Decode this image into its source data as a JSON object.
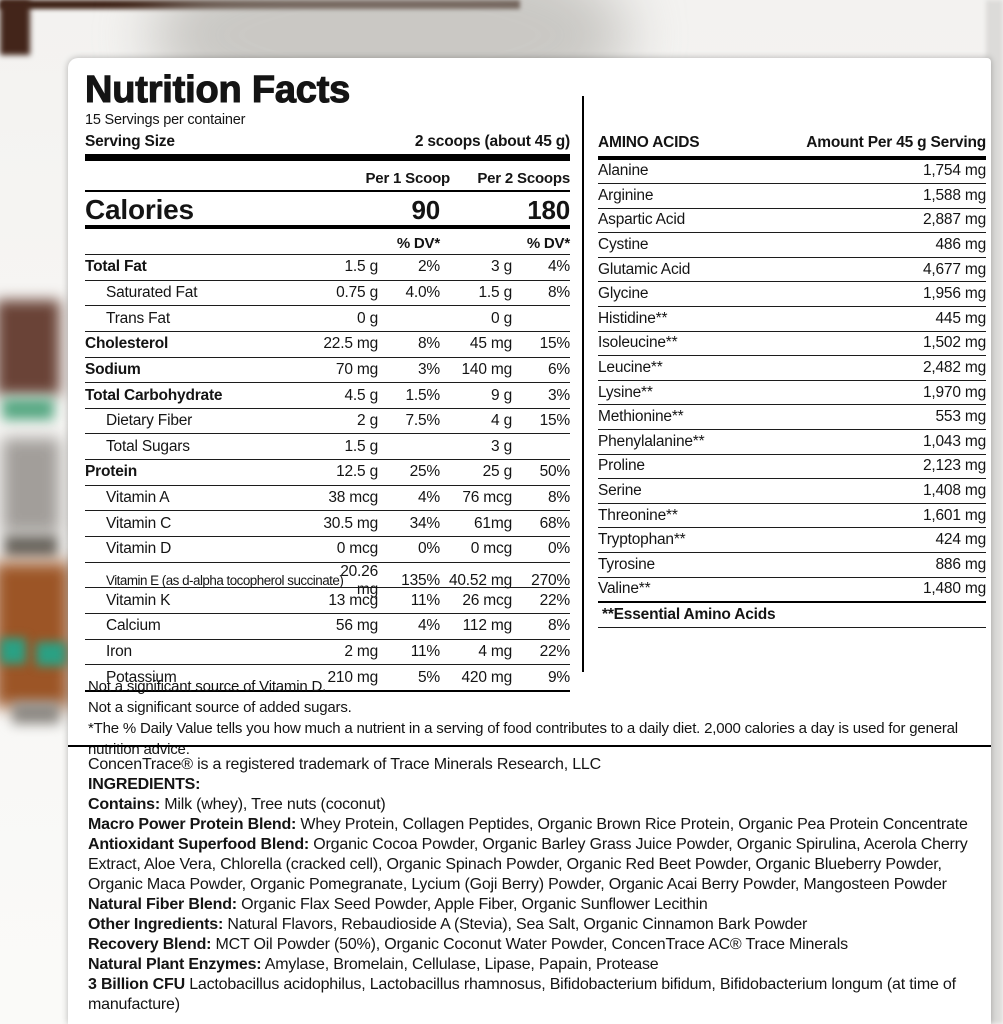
{
  "header": {
    "title": "Nutrition Facts",
    "servings_per_container": "15 Servings per container",
    "serving_size_label": "Serving Size",
    "serving_size_value": "2 scoops (about 45 g)"
  },
  "columns": {
    "per1": "Per 1 Scoop",
    "per2": "Per 2 Scoops",
    "dv1": "% DV*",
    "dv2": "% DV*"
  },
  "calories": {
    "label": "Calories",
    "per1": "90",
    "per2": "180"
  },
  "nutrients": [
    {
      "name": "Total Fat",
      "a1": "1.5 g",
      "d1": "2%",
      "a2": "3 g",
      "d2": "4%"
    },
    {
      "name": "Saturated Fat",
      "a1": "0.75 g",
      "d1": "4.0%",
      "a2": "1.5 g",
      "d2": "8%"
    },
    {
      "name": "Trans Fat",
      "a1": "0 g",
      "d1": "",
      "a2": "0 g",
      "d2": ""
    },
    {
      "name": "Cholesterol",
      "a1": "22.5 mg",
      "d1": "8%",
      "a2": "45 mg",
      "d2": "15%"
    },
    {
      "name": "Sodium",
      "a1": "70 mg",
      "d1": "3%",
      "a2": "140 mg",
      "d2": "6%"
    },
    {
      "name": "Total Carbohydrate",
      "a1": "4.5 g",
      "d1": "1.5%",
      "a2": "9 g",
      "d2": "3%"
    },
    {
      "name": "Dietary Fiber",
      "a1": "2 g",
      "d1": "7.5%",
      "a2": "4 g",
      "d2": "15%"
    },
    {
      "name": "Total Sugars",
      "a1": "1.5 g",
      "d1": "",
      "a2": "3 g",
      "d2": ""
    },
    {
      "name": "Protein",
      "a1": "12.5 g",
      "d1": "25%",
      "a2": "25 g",
      "d2": "50%"
    },
    {
      "name": "Vitamin A",
      "a1": "38 mcg",
      "d1": "4%",
      "a2": "76 mcg",
      "d2": "8%"
    },
    {
      "name": "Vitamin C",
      "a1": "30.5 mg",
      "d1": "34%",
      "a2": "61mg",
      "d2": "68%"
    },
    {
      "name": "Vitamin D",
      "a1": "0 mcg",
      "d1": "0%",
      "a2": "0 mcg",
      "d2": "0%"
    },
    {
      "name": "Vitamin E (as d-alpha tocopherol succinate)",
      "a1": "20.26 mg",
      "d1": "135%",
      "a2": "40.52 mg",
      "d2": "270%"
    },
    {
      "name": "Vitamin K",
      "a1": "13 mcg",
      "d1": "11%",
      "a2": "26 mcg",
      "d2": "22%"
    },
    {
      "name": "Calcium",
      "a1": "56 mg",
      "d1": "4%",
      "a2": "112 mg",
      "d2": "8%"
    },
    {
      "name": "Iron",
      "a1": "2 mg",
      "d1": "11%",
      "a2": "4 mg",
      "d2": "22%"
    },
    {
      "name": "Potassium",
      "a1": "210 mg",
      "d1": "5%",
      "a2": "420 mg",
      "d2": "9%"
    }
  ],
  "amino": {
    "header_left": "AMINO ACIDS",
    "header_right": "Amount Per 45 g Serving",
    "rows": [
      {
        "name": "Alanine",
        "amount": "1,754 mg"
      },
      {
        "name": "Arginine",
        "amount": "1,588 mg"
      },
      {
        "name": "Aspartic Acid",
        "amount": "2,887 mg"
      },
      {
        "name": "Cystine",
        "amount": "486 mg"
      },
      {
        "name": "Glutamic Acid",
        "amount": "4,677 mg"
      },
      {
        "name": "Glycine",
        "amount": "1,956 mg"
      },
      {
        "name": "Histidine**",
        "amount": "445 mg"
      },
      {
        "name": "Isoleucine**",
        "amount": "1,502 mg"
      },
      {
        "name": "Leucine**",
        "amount": "2,482 mg"
      },
      {
        "name": "Lysine**",
        "amount": "1,970 mg"
      },
      {
        "name": "Methionine**",
        "amount": "553 mg"
      },
      {
        "name": "Phenylalanine**",
        "amount": "1,043 mg"
      },
      {
        "name": "Proline",
        "amount": "2,123 mg"
      },
      {
        "name": "Serine",
        "amount": "1,408 mg"
      },
      {
        "name": "Threonine**",
        "amount": "1,601 mg"
      },
      {
        "name": "Tryptophan**",
        "amount": "424 mg"
      },
      {
        "name": "Tyrosine",
        "amount": "886 mg"
      },
      {
        "name": "Valine**",
        "amount": "1,480 mg"
      }
    ],
    "footnote": "**Essential Amino Acids"
  },
  "notes": [
    "Not a significant source of Vitamin D.",
    "Not a significant source of added sugars.",
    "*The % Daily Value tells you how much a nutrient in a serving of food contributes to a daily diet. 2,000 calories a day is used for general nutrition advice."
  ],
  "footer": {
    "trademark": "ConcenTrace® is a registered trademark of Trace Minerals Research, LLC",
    "ingredients_title": "INGREDIENTS:",
    "lines": [
      {
        "lead": "Contains:",
        "text": " Milk (whey), Tree nuts (coconut)"
      },
      {
        "lead": "Macro Power Protein Blend:",
        "text": " Whey Protein, Collagen Peptides, Organic Brown Rice Protein, Organic Pea Protein Concentrate"
      },
      {
        "lead": "Antioxidant Superfood Blend:",
        "text": " Organic Cocoa Powder, Organic Barley Grass Juice Powder, Organic Spirulina, Acerola Cherry Extract, Aloe Vera, Chlorella (cracked cell), Organic Spinach Powder, Organic Red Beet Powder, Organic Blueberry Powder, Organic Maca Powder, Organic Pomegranate, Lycium (Goji Berry) Powder, Organic Acai Berry Powder, Mangosteen Powder"
      },
      {
        "lead": "Natural Fiber Blend:",
        "text": " Organic Flax Seed Powder, Apple Fiber, Organic Sunflower Lecithin"
      },
      {
        "lead": "Other Ingredients:",
        "text": " Natural Flavors, Rebaudioside A (Stevia), Sea Salt, Organic Cinnamon Bark Powder"
      },
      {
        "lead": "Recovery Blend:",
        "text": " MCT Oil Powder (50%), Organic Coconut Water Powder, ConcenTrace AC® Trace Minerals"
      },
      {
        "lead": "Natural Plant Enzymes:",
        "text": " Amylase, Bromelain, Cellulase, Lipase, Papain, Protease"
      },
      {
        "lead": "3 Billion CFU",
        "text": " Lactobacillus acidophilus, Lactobacillus rhamnosus, Bifidobacterium bifidum, Bifidobacterium longum (at time of manufacture)"
      }
    ]
  },
  "colors": {
    "text": "#141414",
    "card": "#ffffff",
    "rule": "#000000"
  }
}
